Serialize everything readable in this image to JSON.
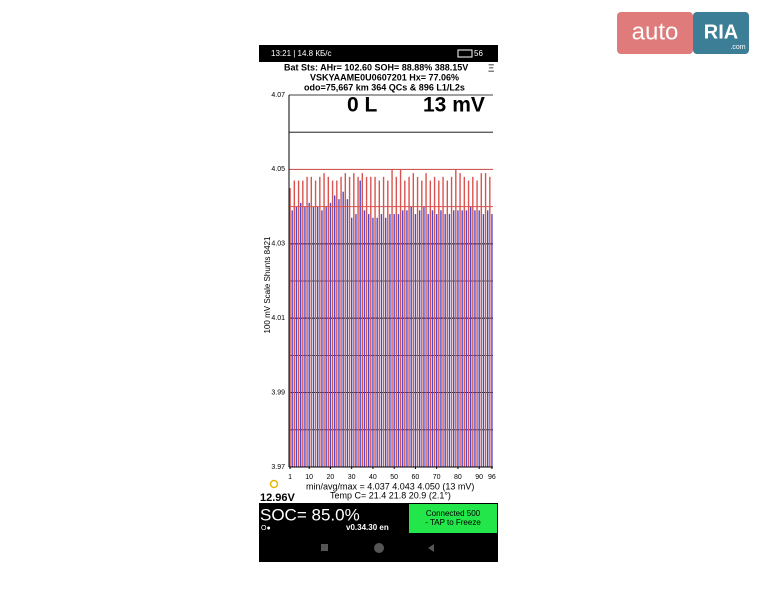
{
  "status_bar": {
    "time": "13:21 | 14.8 КБ/с",
    "battery": "56"
  },
  "header": {
    "line1": "Bat Sts:  AHr= 102.60  SOH= 88.88%  388.15V",
    "line2": "VSKYAAME0U0607201  Hx= 77.06%",
    "line3": "odo=75,667 km  364 QCs & 896 L1/L2s",
    "menu": "Ξ"
  },
  "big_readout": {
    "left": "0 L",
    "right": "13 mV"
  },
  "chart_data": {
    "type": "bar",
    "ylabel": "100 mV Scale   Shunts 8421",
    "x": [
      1,
      2,
      3,
      4,
      5,
      6,
      7,
      8,
      9,
      10,
      11,
      12,
      13,
      14,
      15,
      16,
      17,
      18,
      19,
      20,
      21,
      22,
      23,
      24,
      25,
      26,
      27,
      28,
      29,
      30,
      31,
      32,
      33,
      34,
      35,
      36,
      37,
      38,
      39,
      40,
      41,
      42,
      43,
      44,
      45,
      46,
      47,
      48,
      49,
      50,
      51,
      52,
      53,
      54,
      55,
      56,
      57,
      58,
      59,
      60,
      61,
      62,
      63,
      64,
      65,
      66,
      67,
      68,
      69,
      70,
      71,
      72,
      73,
      74,
      75,
      76,
      77,
      78,
      79,
      80,
      81,
      82,
      83,
      84,
      85,
      86,
      87,
      88,
      89,
      90,
      91,
      92,
      93,
      94,
      95,
      96
    ],
    "values": [
      4.045,
      4.039,
      4.047,
      4.04,
      4.047,
      4.041,
      4.047,
      4.04,
      4.048,
      4.041,
      4.048,
      4.04,
      4.047,
      4.04,
      4.048,
      4.039,
      4.049,
      4.04,
      4.048,
      4.041,
      4.047,
      4.043,
      4.047,
      4.042,
      4.048,
      4.044,
      4.049,
      4.042,
      4.048,
      4.037,
      4.049,
      4.038,
      4.048,
      4.047,
      4.049,
      4.039,
      4.048,
      4.038,
      4.048,
      4.037,
      4.048,
      4.037,
      4.047,
      4.038,
      4.048,
      4.037,
      4.047,
      4.038,
      4.05,
      4.038,
      4.048,
      4.038,
      4.05,
      4.039,
      4.047,
      4.039,
      4.048,
      4.04,
      4.049,
      4.038,
      4.048,
      4.039,
      4.047,
      4.04,
      4.049,
      4.038,
      4.047,
      4.039,
      4.048,
      4.038,
      4.047,
      4.039,
      4.048,
      4.038,
      4.047,
      4.038,
      4.048,
      4.039,
      4.05,
      4.039,
      4.049,
      4.039,
      4.048,
      4.039,
      4.047,
      4.04,
      4.048,
      4.039,
      4.047,
      4.039,
      4.049,
      4.038,
      4.049,
      4.039,
      4.048,
      4.038
    ],
    "bar_colors": [
      "#d9534f",
      "#4a4ad0"
    ],
    "xlim": [
      0.5,
      96.5
    ],
    "xticks": [
      1,
      10,
      20,
      30,
      40,
      50,
      60,
      70,
      80,
      90,
      96
    ],
    "ylim": [
      3.97,
      4.07
    ],
    "yticks": [
      {
        "value": 3.97,
        "label": "3.97"
      },
      {
        "value": 3.99,
        "label": "3.99"
      },
      {
        "value": 4.01,
        "label": "4.01"
      },
      {
        "value": 4.03,
        "label": "4.03"
      },
      {
        "value": 4.05,
        "label": "4.05"
      },
      {
        "value": 4.07,
        "label": "4.07"
      }
    ],
    "grid_values": [
      3.98,
      3.99,
      4.0,
      4.01,
      4.02,
      4.03,
      4.06
    ],
    "reference_lines": [
      4.05,
      4.04
    ],
    "reference_color": "#d9534f"
  },
  "stats": {
    "minavgmax": "min/avg/max = 4.037 4.043 4.050  (13 mV)",
    "temp": "Temp C= 21.4  21.8  20.9  (2.1°)",
    "aux_voltage": "12.96V"
  },
  "footer": {
    "soc": "SOC= 85.0%",
    "icons": "O●",
    "version": "v0.34.30 en",
    "connected": "Connected 500",
    "tap": "- TAP to Freeze"
  },
  "watermark": {
    "left": "auto",
    "right": "RIA",
    "suffix": ".com"
  }
}
